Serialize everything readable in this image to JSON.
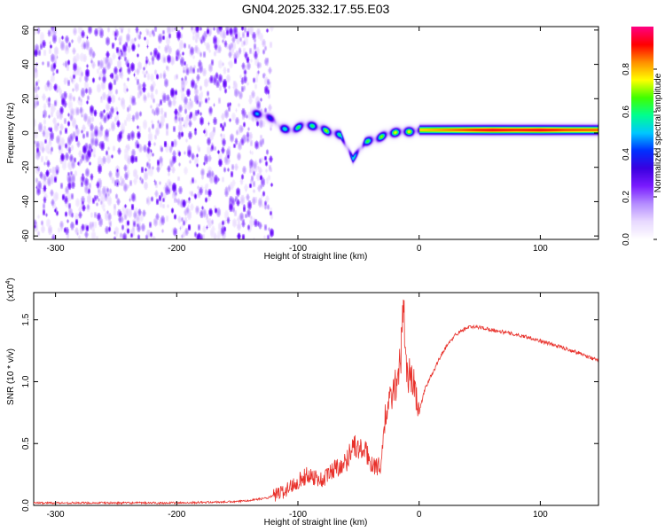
{
  "title": "GN04.2025.332.17.55.E03",
  "colors": {
    "snr_line": "#e8302a",
    "background": "#ffffff",
    "colormap": [
      "#ffffff",
      "#e8d8ff",
      "#b48cff",
      "#7a1bff",
      "#3a00e0",
      "#0030ff",
      "#00c8ff",
      "#00ff90",
      "#40ff00",
      "#ffff00",
      "#ff9000",
      "#ff0000",
      "#ff0080"
    ]
  },
  "chart_data": [
    {
      "type": "heatmap",
      "title": "GN04.2025.332.17.55.E03",
      "xlabel": "Height of straight line (km)",
      "ylabel": "Frequency (Hz)",
      "xlim": [
        -318,
        148
      ],
      "ylim": [
        -62,
        62
      ],
      "xticks": [
        -300,
        -200,
        -100,
        0,
        100
      ],
      "yticks": [
        -60,
        -40,
        -20,
        0,
        20,
        40,
        60
      ],
      "colorbar": {
        "label": "Normalized spectral amplitude",
        "range": [
          0,
          1
        ],
        "ticks": [
          "0.0",
          "0.2",
          "0.4",
          "0.6",
          "0.8"
        ]
      },
      "regions": {
        "noise_extent_km": [
          -318,
          -122
        ],
        "signal_start_km": -140,
        "signal_end_km": 148
      },
      "ridge": [
        {
          "x": -140,
          "f": 12,
          "a": 0.45
        },
        {
          "x": -130,
          "f": 11,
          "a": 0.55
        },
        {
          "x": -120,
          "f": 8,
          "a": 0.35
        },
        {
          "x": -115,
          "f": 3,
          "a": 0.5
        },
        {
          "x": -105,
          "f": 2,
          "a": 0.7
        },
        {
          "x": -95,
          "f": 5,
          "a": 0.6
        },
        {
          "x": -85,
          "f": 4,
          "a": 0.65
        },
        {
          "x": -75,
          "f": 1,
          "a": 0.75
        },
        {
          "x": -65,
          "f": -1,
          "a": 0.6
        },
        {
          "x": -55,
          "f": -15,
          "a": 0.55
        },
        {
          "x": -45,
          "f": -5,
          "a": 0.65
        },
        {
          "x": -35,
          "f": -3,
          "a": 0.7
        },
        {
          "x": -25,
          "f": 0,
          "a": 0.75
        },
        {
          "x": -15,
          "f": 1,
          "a": 0.8
        },
        {
          "x": -5,
          "f": 1,
          "a": 0.78
        },
        {
          "x": 0,
          "f": 2,
          "a": 0.8
        },
        {
          "x": 20,
          "f": 2,
          "a": 0.85
        },
        {
          "x": 40,
          "f": 2,
          "a": 0.9
        },
        {
          "x": 60,
          "f": 2,
          "a": 0.95
        },
        {
          "x": 80,
          "f": 2,
          "a": 0.92
        },
        {
          "x": 100,
          "f": 2,
          "a": 0.95
        },
        {
          "x": 120,
          "f": 2,
          "a": 0.9
        },
        {
          "x": 148,
          "f": 2,
          "a": 0.88
        }
      ]
    },
    {
      "type": "line",
      "xlabel": "Height of straight line (km)",
      "ylabel": "SNR (10 * v/v)",
      "y_multiplier_label": "(x10",
      "y_multiplier_exp": "4",
      "y_multiplier_close": ")",
      "xlim": [
        -318,
        148
      ],
      "ylim": [
        0,
        1.72
      ],
      "xticks": [
        -300,
        -200,
        -100,
        0,
        100
      ],
      "yticks": [
        "0.0",
        "0.5",
        "1.0",
        "1.5"
      ],
      "series": [
        {
          "points": [
            [
              -318,
              0.02
            ],
            [
              -250,
              0.02
            ],
            [
              -200,
              0.02
            ],
            [
              -150,
              0.03
            ],
            [
              -125,
              0.06
            ],
            [
              -110,
              0.12
            ],
            [
              -100,
              0.2
            ],
            [
              -90,
              0.25
            ],
            [
              -80,
              0.2
            ],
            [
              -70,
              0.3
            ],
            [
              -60,
              0.35
            ],
            [
              -55,
              0.5
            ],
            [
              -50,
              0.45
            ],
            [
              -45,
              0.45
            ],
            [
              -40,
              0.35
            ],
            [
              -32,
              0.3
            ],
            [
              -28,
              0.7
            ],
            [
              -24,
              0.85
            ],
            [
              -20,
              0.95
            ],
            [
              -15,
              1.2
            ],
            [
              -13,
              1.72
            ],
            [
              -11,
              1.1
            ],
            [
              -5,
              1.0
            ],
            [
              0,
              0.75
            ],
            [
              5,
              0.95
            ],
            [
              10,
              1.05
            ],
            [
              20,
              1.25
            ],
            [
              30,
              1.38
            ],
            [
              40,
              1.44
            ],
            [
              50,
              1.44
            ],
            [
              60,
              1.42
            ],
            [
              70,
              1.4
            ],
            [
              80,
              1.38
            ],
            [
              90,
              1.36
            ],
            [
              100,
              1.33
            ],
            [
              110,
              1.3
            ],
            [
              120,
              1.27
            ],
            [
              130,
              1.24
            ],
            [
              140,
              1.2
            ],
            [
              148,
              1.17
            ]
          ]
        }
      ]
    }
  ]
}
